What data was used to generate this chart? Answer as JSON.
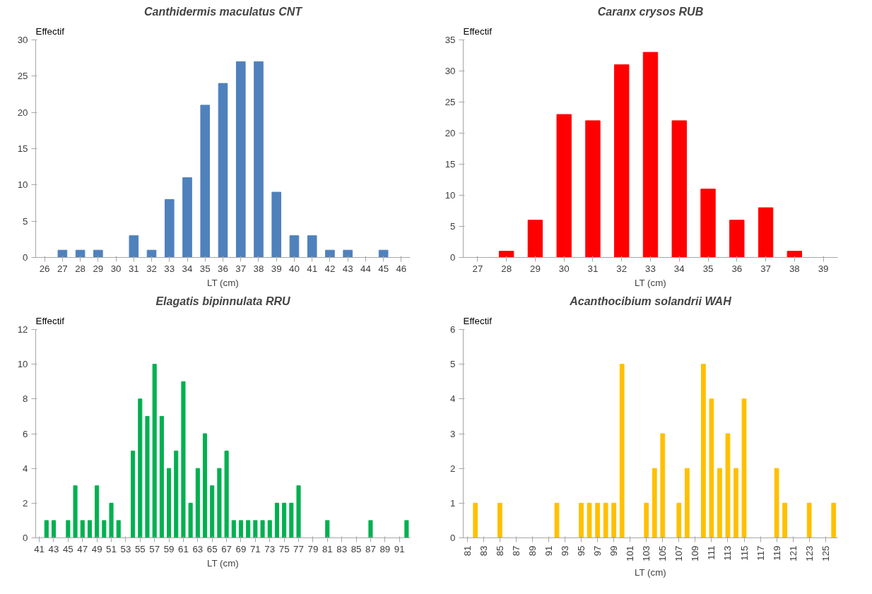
{
  "chart_data": [
    {
      "type": "bar",
      "title": "Canthidermis maculatus CNT",
      "xlabel": "LT (cm)",
      "ylabel": "Effectif",
      "color": "#4f81bd",
      "categories": [
        "26",
        "27",
        "28",
        "29",
        "30",
        "31",
        "32",
        "33",
        "34",
        "35",
        "36",
        "37",
        "38",
        "39",
        "40",
        "41",
        "42",
        "43",
        "44",
        "45",
        "46"
      ],
      "values": [
        0,
        1,
        1,
        1,
        0,
        3,
        1,
        8,
        11,
        21,
        24,
        27,
        27,
        9,
        3,
        3,
        1,
        1,
        0,
        1,
        0
      ],
      "ylim": [
        0,
        30
      ],
      "yticks": [
        0,
        5,
        10,
        15,
        20,
        25,
        30
      ]
    },
    {
      "type": "bar",
      "title": "Caranx crysos RUB",
      "xlabel": "LT (cm)",
      "ylabel": "Effectif",
      "color": "#ff0000",
      "categories": [
        "27",
        "28",
        "29",
        "30",
        "31",
        "32",
        "33",
        "34",
        "35",
        "36",
        "37",
        "38",
        "39"
      ],
      "values": [
        0,
        1,
        6,
        23,
        22,
        31,
        33,
        22,
        11,
        6,
        8,
        1,
        0
      ],
      "ylim": [
        0,
        35
      ],
      "yticks": [
        0,
        5,
        10,
        15,
        20,
        25,
        30,
        35
      ]
    },
    {
      "type": "bar",
      "title": "Elagatis bipinnulata RRU",
      "xlabel": "LT (cm)",
      "ylabel": "Effectif",
      "color": "#00b050",
      "categories": [
        "41",
        null,
        "43",
        null,
        "45",
        null,
        "47",
        null,
        "49",
        null,
        "51",
        null,
        "53",
        null,
        "55",
        null,
        "57",
        null,
        "59",
        null,
        "61",
        null,
        "63",
        null,
        "65",
        null,
        "67",
        null,
        "69",
        null,
        "71",
        null,
        "73",
        null,
        "75",
        null,
        "77",
        null,
        "79",
        null,
        "81",
        null,
        "83",
        null,
        "85",
        null,
        "87",
        null,
        "89",
        null,
        "91",
        null
      ],
      "values": [
        0,
        1,
        1,
        0,
        1,
        3,
        1,
        1,
        3,
        1,
        2,
        1,
        0,
        5,
        8,
        7,
        10,
        7,
        4,
        5,
        9,
        2,
        4,
        6,
        3,
        4,
        5,
        1,
        1,
        1,
        1,
        1,
        1,
        2,
        2,
        2,
        3,
        0,
        0,
        0,
        1,
        0,
        0,
        0,
        0,
        0,
        1,
        0,
        0,
        0,
        0,
        1
      ],
      "ylim": [
        0,
        12
      ],
      "yticks": [
        0,
        2,
        4,
        6,
        8,
        10,
        12
      ]
    },
    {
      "type": "bar",
      "title": "Acanthocibium solandrii WAH",
      "xlabel": "LT (cm)",
      "ylabel": "Effectif",
      "color": "#ffc000",
      "categories": [
        "81",
        null,
        "83",
        null,
        "85",
        null,
        "87",
        null,
        "89",
        null,
        "91",
        null,
        "93",
        null,
        "95",
        null,
        "97",
        null,
        "99",
        null,
        "101",
        null,
        "103",
        null,
        "105",
        null,
        "107",
        null,
        "109",
        null,
        "111",
        null,
        "113",
        null,
        "115",
        null,
        "117",
        null,
        "119",
        null,
        "121",
        null,
        "123",
        null,
        "125",
        null
      ],
      "values": [
        0,
        1,
        0,
        0,
        1,
        0,
        0,
        0,
        0,
        0,
        0,
        1,
        0,
        0,
        1,
        1,
        1,
        1,
        1,
        5,
        0,
        0,
        1,
        2,
        3,
        0,
        1,
        2,
        0,
        5,
        4,
        2,
        3,
        2,
        4,
        0,
        0,
        0,
        2,
        1,
        0,
        0,
        1,
        0,
        0,
        1
      ],
      "ylim": [
        0,
        6
      ],
      "yticks": [
        0,
        1,
        2,
        3,
        4,
        5,
        6
      ]
    }
  ]
}
